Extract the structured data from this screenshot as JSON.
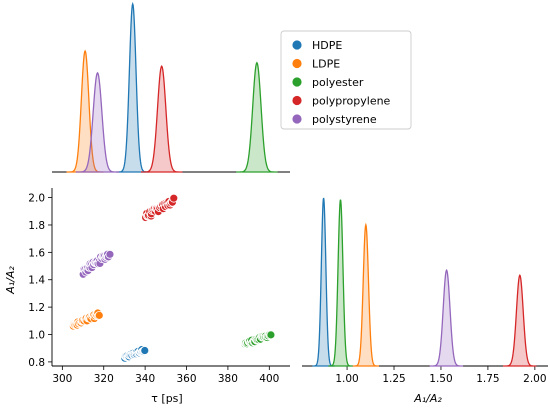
{
  "chart_data": [
    {
      "panel": "top-marginal",
      "type": "area",
      "description": "KDE distributions of tau per material",
      "x_range": [
        295,
        410
      ],
      "series": [
        {
          "name": "HDPE",
          "peak_x": 334,
          "width": 1.6,
          "peak_height": 1.0
        },
        {
          "name": "LDPE",
          "peak_x": 311,
          "width": 1.8,
          "peak_height": 0.72
        },
        {
          "name": "polyester",
          "peak_x": 394,
          "width": 2.0,
          "peak_height": 0.65
        },
        {
          "name": "polypropylene",
          "peak_x": 348,
          "width": 2.0,
          "peak_height": 0.63
        },
        {
          "name": "polystyrene",
          "peak_x": 317,
          "width": 2.1,
          "peak_height": 0.59
        }
      ]
    },
    {
      "panel": "joint-scatter",
      "type": "scatter",
      "xlabel": "τ [ps]",
      "ylabel": "A1/A2",
      "xlim": [
        295,
        410
      ],
      "ylim": [
        0.77,
        2.07
      ],
      "xticks": [
        "300",
        "320",
        "340",
        "360",
        "380",
        "400"
      ],
      "yticks": [
        "0.8",
        "1.0",
        "1.2",
        "1.4",
        "1.6",
        "1.8",
        "2.0"
      ],
      "series": [
        {
          "name": "HDPE",
          "x_range": [
            330,
            340
          ],
          "y_range": [
            0.83,
            0.89
          ]
        },
        {
          "name": "LDPE",
          "x_range": [
            305,
            318
          ],
          "y_range": [
            1.06,
            1.15
          ]
        },
        {
          "name": "polyester",
          "x_range": [
            388,
            401
          ],
          "y_range": [
            0.93,
            1.0
          ]
        },
        {
          "name": "polypropylene",
          "x_range": [
            340,
            354
          ],
          "y_range": [
            1.86,
            1.98
          ]
        },
        {
          "name": "polystyrene",
          "x_range": [
            310,
            323
          ],
          "y_range": [
            1.46,
            1.59
          ]
        }
      ]
    },
    {
      "panel": "right-marginal",
      "type": "area",
      "description": "KDE distributions of A1/A2 per material",
      "xlabel": "A1/A2",
      "xlim": [
        0.76,
        2.07
      ],
      "xticks": [
        "1.00",
        "1.25",
        "1.50",
        "1.75",
        "2.00"
      ],
      "series": [
        {
          "name": "HDPE",
          "peak_x": 0.875,
          "width": 0.012,
          "peak_height": 1.0
        },
        {
          "name": "polyester",
          "peak_x": 0.965,
          "width": 0.013,
          "peak_height": 0.99
        },
        {
          "name": "LDPE",
          "peak_x": 1.1,
          "width": 0.014,
          "peak_height": 0.84
        },
        {
          "name": "polystyrene",
          "peak_x": 1.53,
          "width": 0.018,
          "peak_height": 0.57
        },
        {
          "name": "polypropylene",
          "peak_x": 1.92,
          "width": 0.018,
          "peak_height": 0.54
        }
      ]
    }
  ],
  "legend": {
    "placement": "top-right",
    "items": [
      {
        "label": "HDPE",
        "color": "#1f77b4"
      },
      {
        "label": "LDPE",
        "color": "#ff7f0e"
      },
      {
        "label": "polyester",
        "color": "#2ca02c"
      },
      {
        "label": "polypropylene",
        "color": "#d62728"
      },
      {
        "label": "polystyrene",
        "color": "#9467bd"
      }
    ]
  },
  "labels": {
    "xlabel_tau": "τ [ps]",
    "ylabel_ratio": "A₁/A₂",
    "xlabel_ratio": "A₁/A₂"
  }
}
